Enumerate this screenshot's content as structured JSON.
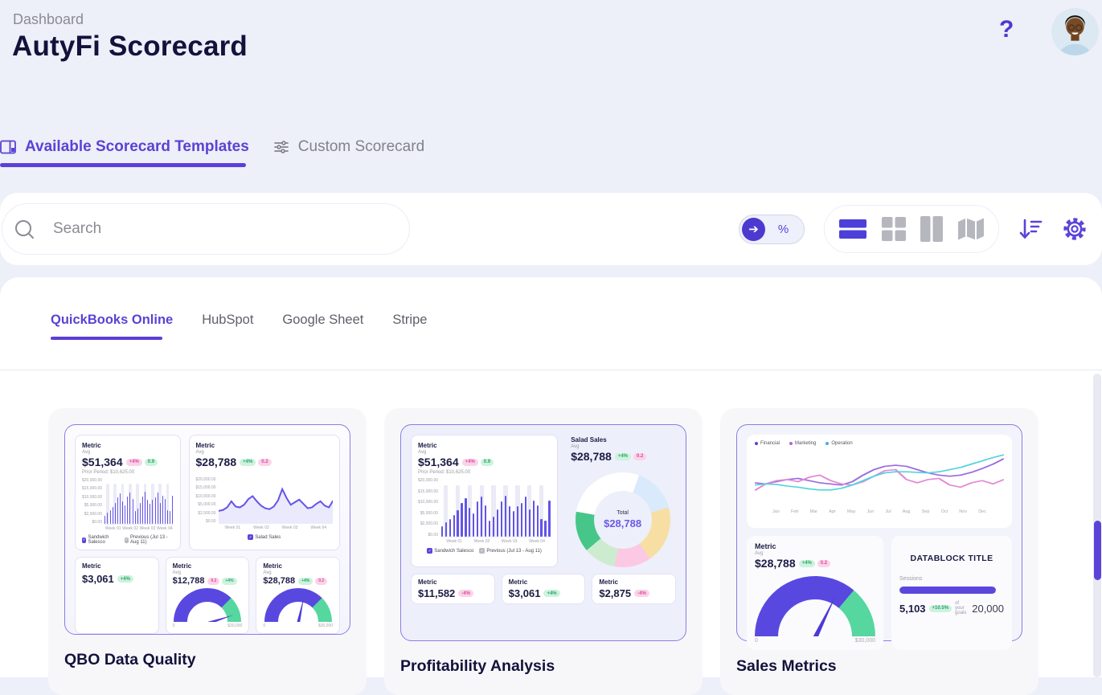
{
  "header": {
    "breadcrumb": "Dashboard",
    "title": "AutyFi Scorecard",
    "help": "?"
  },
  "tabs": [
    {
      "label": "Available Scorecard Templates"
    },
    {
      "label": "Custom Scorecard"
    }
  ],
  "toolbar": {
    "search_placeholder": "Search",
    "percent": "%"
  },
  "source_tabs": [
    "QuickBooks Online",
    "HubSpot",
    "Google Sheet",
    "Stripe"
  ],
  "colors": {
    "accent": "#5b42d4",
    "bar": "#6254e8",
    "green": "#27a56a",
    "pink": "#e0489a",
    "teal": "#53d3dd",
    "magenta": "#e48ad2",
    "purple_line": "#9b6be0"
  },
  "cards": [
    {
      "title": "QBO Data Quality",
      "bar_chart": {
        "label": "Metric",
        "avg": "Avg",
        "value": "$51,364",
        "badges": [
          {
            "text": "+4%",
            "tone": "pink"
          },
          {
            "text": "0.9",
            "tone": "green"
          }
        ],
        "prior": "Prior Period:  $10,625.00",
        "y_ticks": [
          "$20,000.00",
          "$15,000.00",
          "$10,000.00",
          "$5,000.00",
          "$2,500.00",
          "$0.00"
        ],
        "x_ticks": [
          "Week 01",
          "Week 02",
          "Week 03",
          "Week 04"
        ],
        "values": [
          18,
          24,
          30,
          37,
          45,
          58,
          66,
          50,
          40,
          60,
          68,
          54,
          28,
          34,
          46,
          60,
          70,
          52,
          44,
          52,
          58,
          68,
          46,
          62,
          54,
          30,
          28,
          62
        ],
        "prev_height": 88,
        "legend": [
          {
            "text": "Sandwich Salesco",
            "tone": "purple"
          },
          {
            "text": "Previous (Jul 13 - Aug 11)",
            "tone": "gray"
          }
        ]
      },
      "area_chart": {
        "label": "Metric",
        "avg": "Avg",
        "value": "$28,788",
        "badges": [
          {
            "text": "+4%",
            "tone": "green"
          },
          {
            "text": "0.2",
            "tone": "pink"
          }
        ],
        "y_ticks": [
          "$20,000.00",
          "$15,000.00",
          "$10,000.00",
          "$5,000.00",
          "$2,500.00",
          "$0.00"
        ],
        "x_ticks": [
          "Week 01",
          "Week 02",
          "Week 03",
          "Week 04"
        ],
        "values": [
          28,
          30,
          36,
          50,
          38,
          36,
          42,
          55,
          62,
          50,
          40,
          34,
          32,
          38,
          52,
          78,
          58,
          42,
          48,
          54,
          44,
          34,
          36,
          44,
          50,
          40,
          36,
          52
        ],
        "legend": [
          {
            "text": "Salad Sales",
            "tone": "purple"
          }
        ]
      },
      "tiles": [
        {
          "type": "metric",
          "label": "Metric",
          "value": "$3,061",
          "badges": [
            {
              "text": "+4%",
              "tone": "green"
            }
          ]
        },
        {
          "type": "gauge",
          "label": "Metric",
          "avg": "Avg",
          "value": "$12,788",
          "badges": [
            {
              "text": "0.2",
              "tone": "pink"
            },
            {
              "text": "+4%",
              "tone": "green"
            }
          ],
          "min": "0",
          "max": "$30,000",
          "split_deg": 135,
          "needle_deg": 72
        },
        {
          "type": "gauge",
          "label": "Metric",
          "avg": "Avg",
          "value": "$28,788",
          "badges": [
            {
              "text": "+4%",
              "tone": "green"
            },
            {
              "text": "0.2",
              "tone": "pink"
            }
          ],
          "min": "0",
          "max": "$30,000",
          "split_deg": 135,
          "needle_deg": 12
        }
      ]
    },
    {
      "title": "Profitability Analysis",
      "bar_chart": {
        "label": "Metric",
        "avg": "Avg",
        "value": "$51,364",
        "badges": [
          {
            "text": "+4%",
            "tone": "pink"
          },
          {
            "text": "0.9",
            "tone": "green"
          }
        ],
        "prior": "Prior Period:  $10,625.00",
        "y_ticks": [
          "$20,000.00",
          "$15,000.00",
          "$10,000.00",
          "$5,000.00",
          "$2,500.00",
          "$0.00"
        ],
        "x_ticks": [
          "Week 01",
          "Week 02",
          "Week 03",
          "Week 04"
        ],
        "values": [
          18,
          24,
          30,
          37,
          45,
          58,
          66,
          50,
          40,
          60,
          68,
          54,
          28,
          34,
          46,
          60,
          70,
          52,
          44,
          52,
          58,
          68,
          46,
          62,
          54,
          30,
          28,
          62
        ],
        "prev_height": 88,
        "legend": [
          {
            "text": "Sandwich Salesco",
            "tone": "purple"
          },
          {
            "text": "Previous (Jul 13 - Aug 11)",
            "tone": "gray"
          }
        ]
      },
      "donut": {
        "label": "Salad Sales",
        "avg": "Avg",
        "value": "$28,788",
        "badges": [
          {
            "text": "+4%",
            "tone": "green"
          },
          {
            "text": "0.2",
            "tone": "pink"
          }
        ],
        "center_label": "Total",
        "center_value": "$28,788",
        "segments": [
          {
            "color": "#ffffff",
            "deg": 20
          },
          {
            "color": "#d8eafc",
            "deg": 55
          },
          {
            "color": "#f7dfa4",
            "deg": 70
          },
          {
            "color": "#fbc9e3",
            "deg": 45
          },
          {
            "color": "#cdeccf",
            "deg": 40
          },
          {
            "color": "#47c689",
            "deg": 50
          },
          {
            "color": "#ffffff",
            "deg": 80
          }
        ]
      },
      "tiles": [
        {
          "type": "metric",
          "label": "Metric",
          "value": "$11,582",
          "badges": [
            {
              "text": "-4%",
              "tone": "pink"
            }
          ]
        },
        {
          "type": "metric",
          "label": "Metric",
          "value": "$3,061",
          "badges": [
            {
              "text": "+4%",
              "tone": "green"
            }
          ]
        },
        {
          "type": "metric",
          "label": "Metric",
          "value": "$2,875",
          "badges": [
            {
              "text": "-4%",
              "tone": "pink"
            }
          ]
        }
      ]
    },
    {
      "title": "Sales Metrics",
      "line_chart": {
        "legend": [
          {
            "label": "Financial",
            "color": "#5b43d9"
          },
          {
            "label": "Marketing",
            "color": "#b95fd8"
          },
          {
            "label": "Operation",
            "color": "#4aa8e8"
          }
        ],
        "x_ticks": [
          "Jan",
          "Feb",
          "Mar",
          "Apr",
          "May",
          "Jun",
          "Jul",
          "Aug",
          "Sep",
          "Oct",
          "Nov",
          "Dec"
        ],
        "series": [
          {
            "name": "Financial",
            "color": "#9b6be0",
            "values": [
              44,
              42,
              46,
              50,
              52,
              48,
              44,
              42,
              40,
              46,
              58,
              68,
              74,
              76,
              74,
              68,
              62,
              58,
              56,
              58,
              63,
              70,
              78,
              88
            ]
          },
          {
            "name": "Marketing",
            "color": "#e48ad2",
            "values": [
              30,
              42,
              48,
              50,
              46,
              54,
              58,
              48,
              42,
              40,
              46,
              56,
              66,
              68,
              50,
              44,
              50,
              52,
              40,
              36,
              44,
              48,
              42,
              50
            ]
          },
          {
            "name": "Operation",
            "color": "#53d3dd",
            "values": [
              40,
              42,
              41,
              38,
              36,
              33,
              31,
              31,
              34,
              40,
              48,
              56,
              62,
              64,
              64,
              63,
              62,
              64,
              68,
              72,
              78,
              84,
              90,
              95
            ]
          }
        ]
      },
      "gauge": {
        "label": "Metric",
        "avg": "Avg",
        "value": "$28,788",
        "badges": [
          {
            "text": "+4%",
            "tone": "green"
          },
          {
            "text": "0.2",
            "tone": "pink"
          }
        ],
        "min": "0",
        "max": "$30,000",
        "split_deg": 130,
        "needle_deg": 26
      },
      "datablock": {
        "title": "DATABLOCK TITLE",
        "metric_label": "Sessions",
        "value": "5,103",
        "badge": "+10.5%",
        "caption": "of your goals",
        "target": "20,000",
        "progress_pct": 100
      }
    }
  ]
}
